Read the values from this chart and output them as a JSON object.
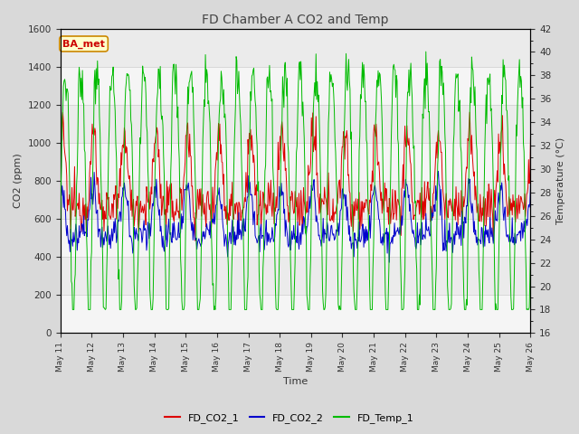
{
  "title": "FD Chamber A CO2 and Temp",
  "xlabel": "Time",
  "ylabel_left": "CO2 (ppm)",
  "ylabel_right": "Temperature (°C)",
  "ylim_left": [
    0,
    1600
  ],
  "ylim_right": [
    16,
    42
  ],
  "yticks_left": [
    0,
    200,
    400,
    600,
    800,
    1000,
    1200,
    1400,
    1600
  ],
  "yticks_right": [
    16,
    18,
    20,
    22,
    24,
    26,
    28,
    30,
    32,
    34,
    36,
    38,
    40,
    42
  ],
  "xtick_labels": [
    "May 11",
    "May 12",
    "May 13",
    "May 14",
    "May 15",
    "May 16",
    "May 17",
    "May 18",
    "May 19",
    "May 20",
    "May 21",
    "May 22",
    "May 23",
    "May 24",
    "May 25",
    "May 26"
  ],
  "color_co2_1": "#dd0000",
  "color_co2_2": "#0000cc",
  "color_temp": "#00bb00",
  "legend_entries": [
    "FD_CO2_1",
    "FD_CO2_2",
    "FD_Temp_1"
  ],
  "annotation_text": "BA_met",
  "bg_color": "#d9d9d9",
  "plot_bg_color": "#ebebeb",
  "plot_bg_color2": "#ffffff"
}
